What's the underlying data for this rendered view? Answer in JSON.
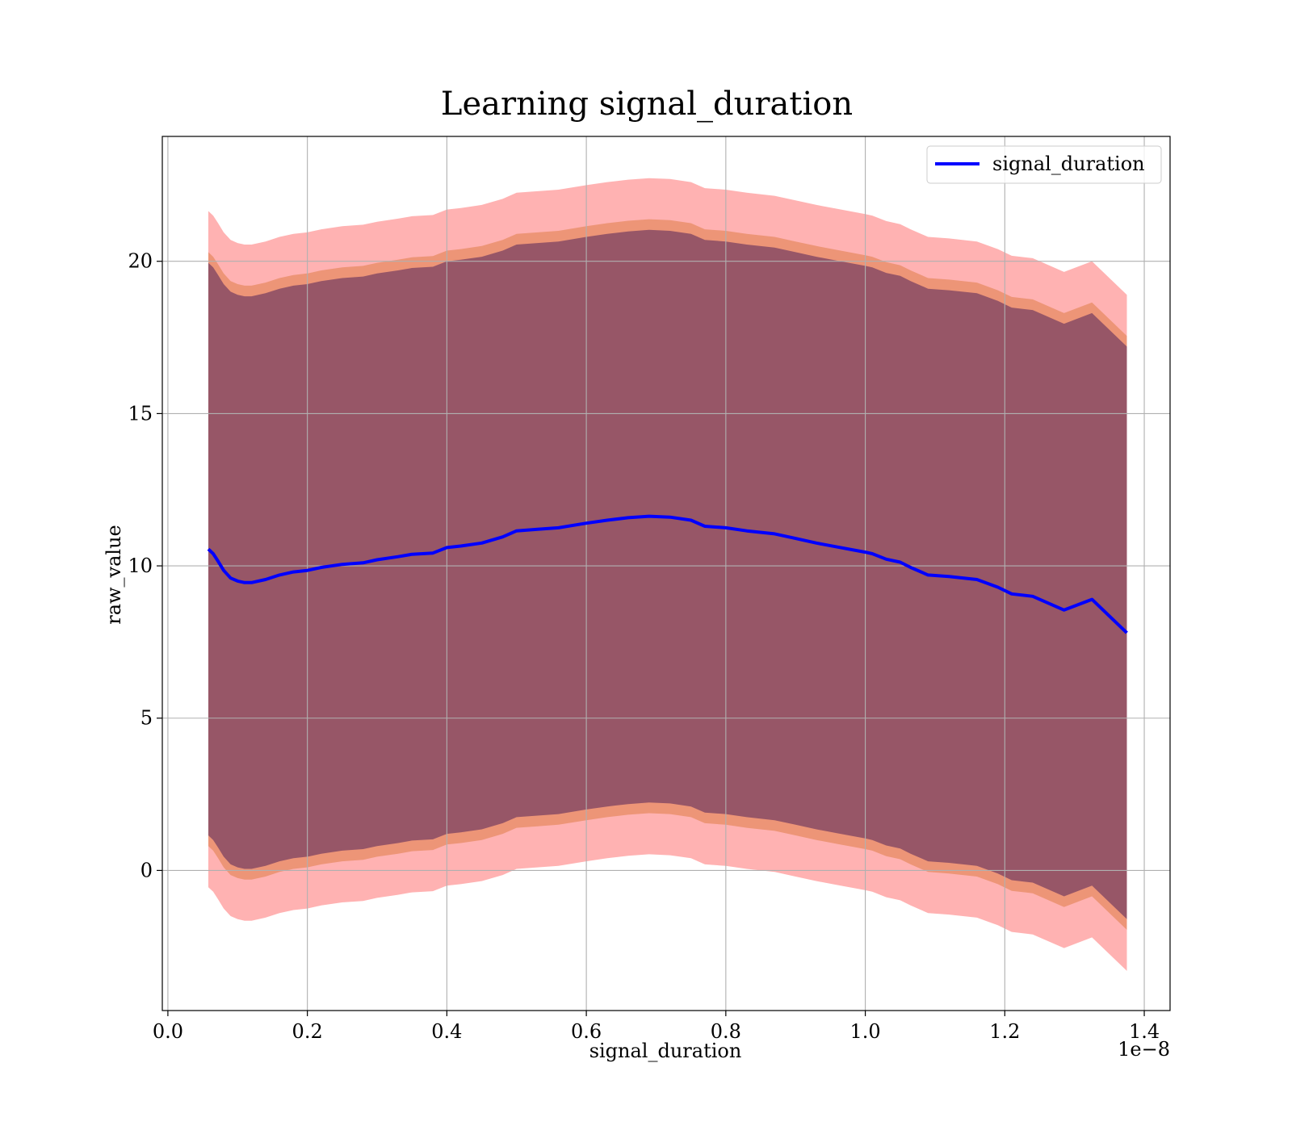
{
  "chart_data": {
    "type": "line",
    "title": "Learning signal_duration",
    "xlabel": "signal_duration",
    "ylabel": "raw_value",
    "x_offset_label": "1e−8",
    "x_ticks": [
      0.0,
      0.2,
      0.4,
      0.6,
      0.8,
      1.0,
      1.2,
      1.4
    ],
    "x_tick_labels": [
      "0.0",
      "0.2",
      "0.4",
      "0.6",
      "0.8",
      "1.0",
      "1.2",
      "1.4"
    ],
    "y_ticks": [
      0,
      5,
      10,
      15,
      20
    ],
    "y_tick_labels": [
      "0",
      "5",
      "10",
      "15",
      "20"
    ],
    "xlim": [
      -0.008,
      1.437
    ],
    "ylim": [
      -4.6,
      24.1
    ],
    "grid": true,
    "legend_position": "upper right",
    "series": [
      {
        "name": "signal_duration",
        "color": "#0000ff",
        "x": [
          0.058,
          0.065,
          0.072,
          0.08,
          0.09,
          0.1,
          0.11,
          0.12,
          0.14,
          0.16,
          0.18,
          0.2,
          0.22,
          0.25,
          0.28,
          0.3,
          0.33,
          0.35,
          0.38,
          0.4,
          0.42,
          0.45,
          0.48,
          0.5,
          0.53,
          0.56,
          0.6,
          0.63,
          0.66,
          0.69,
          0.72,
          0.75,
          0.77,
          0.8,
          0.83,
          0.87,
          0.9,
          0.93,
          0.96,
          1.0,
          1.01,
          1.03,
          1.05,
          1.065,
          1.09,
          1.12,
          1.16,
          1.19,
          1.21,
          1.24,
          1.285,
          1.325,
          1.375
        ],
        "y": [
          10.55,
          10.4,
          10.15,
          9.85,
          9.6,
          9.5,
          9.45,
          9.45,
          9.55,
          9.7,
          9.8,
          9.85,
          9.95,
          10.05,
          10.1,
          10.2,
          10.3,
          10.38,
          10.42,
          10.6,
          10.65,
          10.75,
          10.95,
          11.15,
          11.2,
          11.25,
          11.4,
          11.5,
          11.58,
          11.63,
          11.6,
          11.5,
          11.3,
          11.25,
          11.15,
          11.05,
          10.9,
          10.75,
          10.62,
          10.45,
          10.4,
          10.22,
          10.12,
          9.95,
          9.7,
          9.65,
          9.55,
          9.3,
          9.08,
          9.0,
          8.55,
          8.9,
          7.8
        ]
      }
    ],
    "bands": [
      {
        "color": "#ff0000",
        "opacity": 0.3,
        "offset": 11.1
      },
      {
        "color": "#d2691e",
        "opacity": 0.4,
        "offset": 9.75
      },
      {
        "color": "#2e0854",
        "opacity": 0.45,
        "offset": 9.4
      }
    ]
  }
}
